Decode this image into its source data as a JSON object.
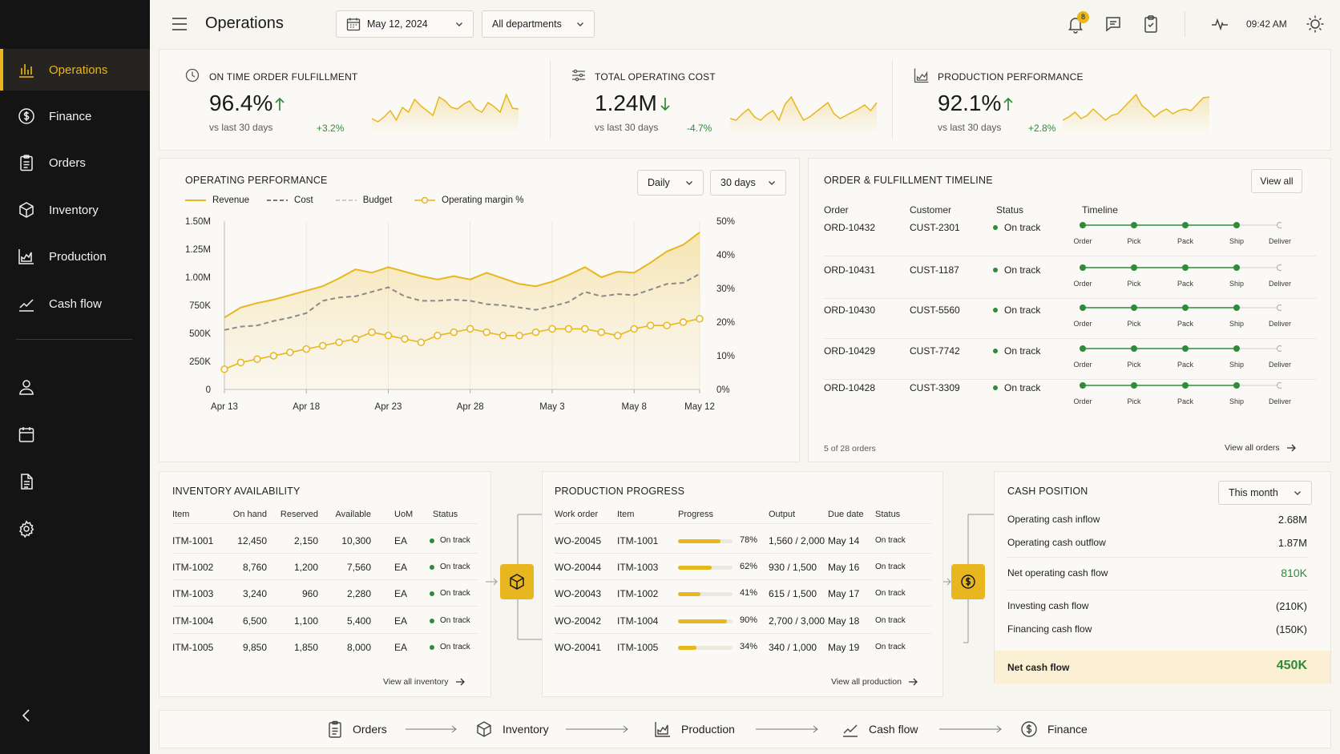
{
  "app": {
    "title": "Operations",
    "date": "May 12, 2024",
    "department": "All departments",
    "notifications": "8",
    "time": "09:42 AM"
  },
  "colors": {
    "accent": "#e8b61f",
    "sidebar": "#141414",
    "positive": "#2f8a3a"
  },
  "sidebar": {
    "items": [
      {
        "label": "Operations",
        "icon": "bar-chart-icon"
      },
      {
        "label": "Finance",
        "icon": "dollar-circle-icon"
      },
      {
        "label": "Orders",
        "icon": "clipboard-icon"
      },
      {
        "label": "Inventory",
        "icon": "box-icon"
      },
      {
        "label": "Production",
        "icon": "factory-chart-icon"
      },
      {
        "label": "Cash flow",
        "icon": "trend-line-icon"
      }
    ],
    "secondary_icons": [
      "user-icon",
      "calendar-icon",
      "document-icon",
      "gear-icon"
    ]
  },
  "kpis": [
    {
      "label": "ON TIME ORDER FULFILLMENT",
      "value": "96.4%",
      "sub": "vs last 30 days",
      "delta": "+3.2%",
      "direction": "up",
      "spark": [
        60,
        64,
        58,
        50,
        62,
        46,
        52,
        36,
        44,
        50,
        56,
        33,
        38,
        46,
        48,
        42,
        38,
        48,
        52,
        40,
        45,
        52,
        30,
        47,
        48
      ]
    },
    {
      "label": "TOTAL OPERATING COST",
      "value": "1.24M",
      "sub": "vs last 30 days",
      "delta": "-4.7%",
      "direction": "down",
      "spark": [
        60,
        62,
        54,
        48,
        58,
        62,
        55,
        50,
        62,
        42,
        33,
        48,
        62,
        58,
        52,
        46,
        40,
        54,
        60,
        56,
        52,
        48,
        43,
        50,
        40
      ]
    },
    {
      "label": "PRODUCTION PERFORMANCE",
      "value": "92.1%",
      "sub": "vs last 30 days",
      "delta": "+2.8%",
      "direction": "up",
      "spark": [
        62,
        58,
        52,
        60,
        56,
        48,
        55,
        62,
        56,
        54,
        46,
        38,
        30,
        44,
        50,
        58,
        52,
        48,
        54,
        50,
        48,
        50,
        42,
        34,
        33
      ]
    }
  ],
  "operating": {
    "title": "OPERATING PERFORMANCE",
    "period": "Daily",
    "range": "30 days",
    "legend": {
      "revenue": "Revenue",
      "cost": "Cost",
      "budget": "Budget",
      "margin": "Operating margin %"
    },
    "yticks": [
      "1.50M",
      "1.25M",
      "1.00M",
      "750K",
      "500K",
      "250K",
      "0"
    ],
    "y2ticks": [
      "50%",
      "40%",
      "30%",
      "20%",
      "10%",
      "0%"
    ],
    "xticks": [
      "Apr 13",
      "Apr 18",
      "Apr 23",
      "Apr 28",
      "May 3",
      "May 8",
      "May 12"
    ]
  },
  "chart_data": {
    "type": "line",
    "x": [
      "Apr 13",
      "Apr 14",
      "Apr 15",
      "Apr 16",
      "Apr 17",
      "Apr 18",
      "Apr 19",
      "Apr 20",
      "Apr 21",
      "Apr 22",
      "Apr 23",
      "Apr 24",
      "Apr 25",
      "Apr 26",
      "Apr 27",
      "Apr 28",
      "Apr 29",
      "Apr 30",
      "May 1",
      "May 2",
      "May 3",
      "May 4",
      "May 5",
      "May 6",
      "May 7",
      "May 8",
      "May 9",
      "May 10",
      "May 11",
      "May 12"
    ],
    "ylim": [
      0,
      1500000
    ],
    "y2lim": [
      0,
      50
    ],
    "series": [
      {
        "name": "Revenue",
        "values": [
          640000,
          730000,
          770000,
          800000,
          840000,
          880000,
          920000,
          990000,
          1070000,
          1040000,
          1090000,
          1050000,
          1010000,
          980000,
          1010000,
          980000,
          1040000,
          990000,
          940000,
          920000,
          960000,
          1020000,
          1090000,
          1000000,
          1050000,
          1040000,
          1130000,
          1230000,
          1290000,
          1400000
        ]
      },
      {
        "name": "Cost",
        "values": [
          530000,
          560000,
          570000,
          610000,
          640000,
          680000,
          790000,
          820000,
          830000,
          870000,
          910000,
          830000,
          790000,
          790000,
          800000,
          790000,
          760000,
          750000,
          730000,
          710000,
          740000,
          780000,
          870000,
          830000,
          850000,
          840000,
          890000,
          940000,
          950000,
          1030000
        ]
      },
      {
        "name": "Operating margin %",
        "axis": "right",
        "values": [
          6,
          8,
          9,
          10,
          11,
          12,
          13,
          14,
          15,
          17,
          16,
          15,
          14,
          16,
          17,
          18,
          17,
          16,
          16,
          17,
          18,
          18,
          18,
          17,
          16,
          18,
          19,
          19,
          20,
          21
        ]
      }
    ]
  },
  "timeline": {
    "title": "ORDER & FULFILLMENT TIMELINE",
    "view_all": "View all",
    "headers": [
      "Order",
      "Customer",
      "Status",
      "Timeline"
    ],
    "stages": [
      "Order",
      "Pick",
      "Pack",
      "Ship",
      "Deliver"
    ],
    "rows": [
      {
        "order": "ORD-10432",
        "customer": "CUST-2301",
        "status": "On track"
      },
      {
        "order": "ORD-10431",
        "customer": "CUST-1187",
        "status": "On track"
      },
      {
        "order": "ORD-10430",
        "customer": "CUST-5560",
        "status": "On track"
      },
      {
        "order": "ORD-10429",
        "customer": "CUST-7742",
        "status": "On track"
      },
      {
        "order": "ORD-10428",
        "customer": "CUST-3309",
        "status": "On track"
      }
    ],
    "count": "5 of 28 orders",
    "footer_link": "View all orders"
  },
  "inventory": {
    "title": "INVENTORY AVAILABILITY",
    "headers": [
      "Item",
      "On hand",
      "Reserved",
      "Available",
      "UoM",
      "Status"
    ],
    "rows": [
      [
        "ITM-1001",
        "12,450",
        "2,150",
        "10,300",
        "EA",
        "On track"
      ],
      [
        "ITM-1002",
        "8,760",
        "1,200",
        "7,560",
        "EA",
        "On track"
      ],
      [
        "ITM-1003",
        "3,240",
        "960",
        "2,280",
        "EA",
        "On track"
      ],
      [
        "ITM-1004",
        "6,500",
        "1,100",
        "5,400",
        "EA",
        "On track"
      ],
      [
        "ITM-1005",
        "9,850",
        "1,850",
        "8,000",
        "EA",
        "On track"
      ]
    ],
    "footer_link": "View all inventory"
  },
  "production": {
    "title": "PRODUCTION PROGRESS",
    "headers": [
      "Work order",
      "Item",
      "Progress",
      "Output",
      "Due date",
      "Status"
    ],
    "rows": [
      {
        "wo": "WO-20045",
        "item": "ITM-1001",
        "progress": 78,
        "pct": "78%",
        "output": "1,560 / 2,000",
        "due": "May 14",
        "status": "On track"
      },
      {
        "wo": "WO-20044",
        "item": "ITM-1003",
        "progress": 62,
        "pct": "62%",
        "output": "930 / 1,500",
        "due": "May 16",
        "status": "On track"
      },
      {
        "wo": "WO-20043",
        "item": "ITM-1002",
        "progress": 41,
        "pct": "41%",
        "output": "615 / 1,500",
        "due": "May 17",
        "status": "On track"
      },
      {
        "wo": "WO-20042",
        "item": "ITM-1004",
        "progress": 90,
        "pct": "90%",
        "output": "2,700 / 3,000",
        "due": "May 18",
        "status": "On track"
      },
      {
        "wo": "WO-20041",
        "item": "ITM-1005",
        "progress": 34,
        "pct": "34%",
        "output": "340 / 1,000",
        "due": "May 19",
        "status": "On track"
      }
    ],
    "footer_link": "View all production"
  },
  "cash": {
    "title": "CASH POSITION",
    "period": "This month",
    "rows": [
      {
        "label": "Operating cash inflow",
        "value": "2.68M"
      },
      {
        "label": "Operating cash outflow",
        "value": "1.87M"
      },
      {
        "label": "Net operating cash flow",
        "value": "810K"
      },
      {
        "label": "Investing cash flow",
        "value": "(210K)"
      },
      {
        "label": "Financing cash flow",
        "value": "(150K)"
      }
    ],
    "net_label": "Net cash flow",
    "net_value": "450K"
  },
  "flow": [
    "Orders",
    "Inventory",
    "Production",
    "Cash flow",
    "Finance"
  ]
}
